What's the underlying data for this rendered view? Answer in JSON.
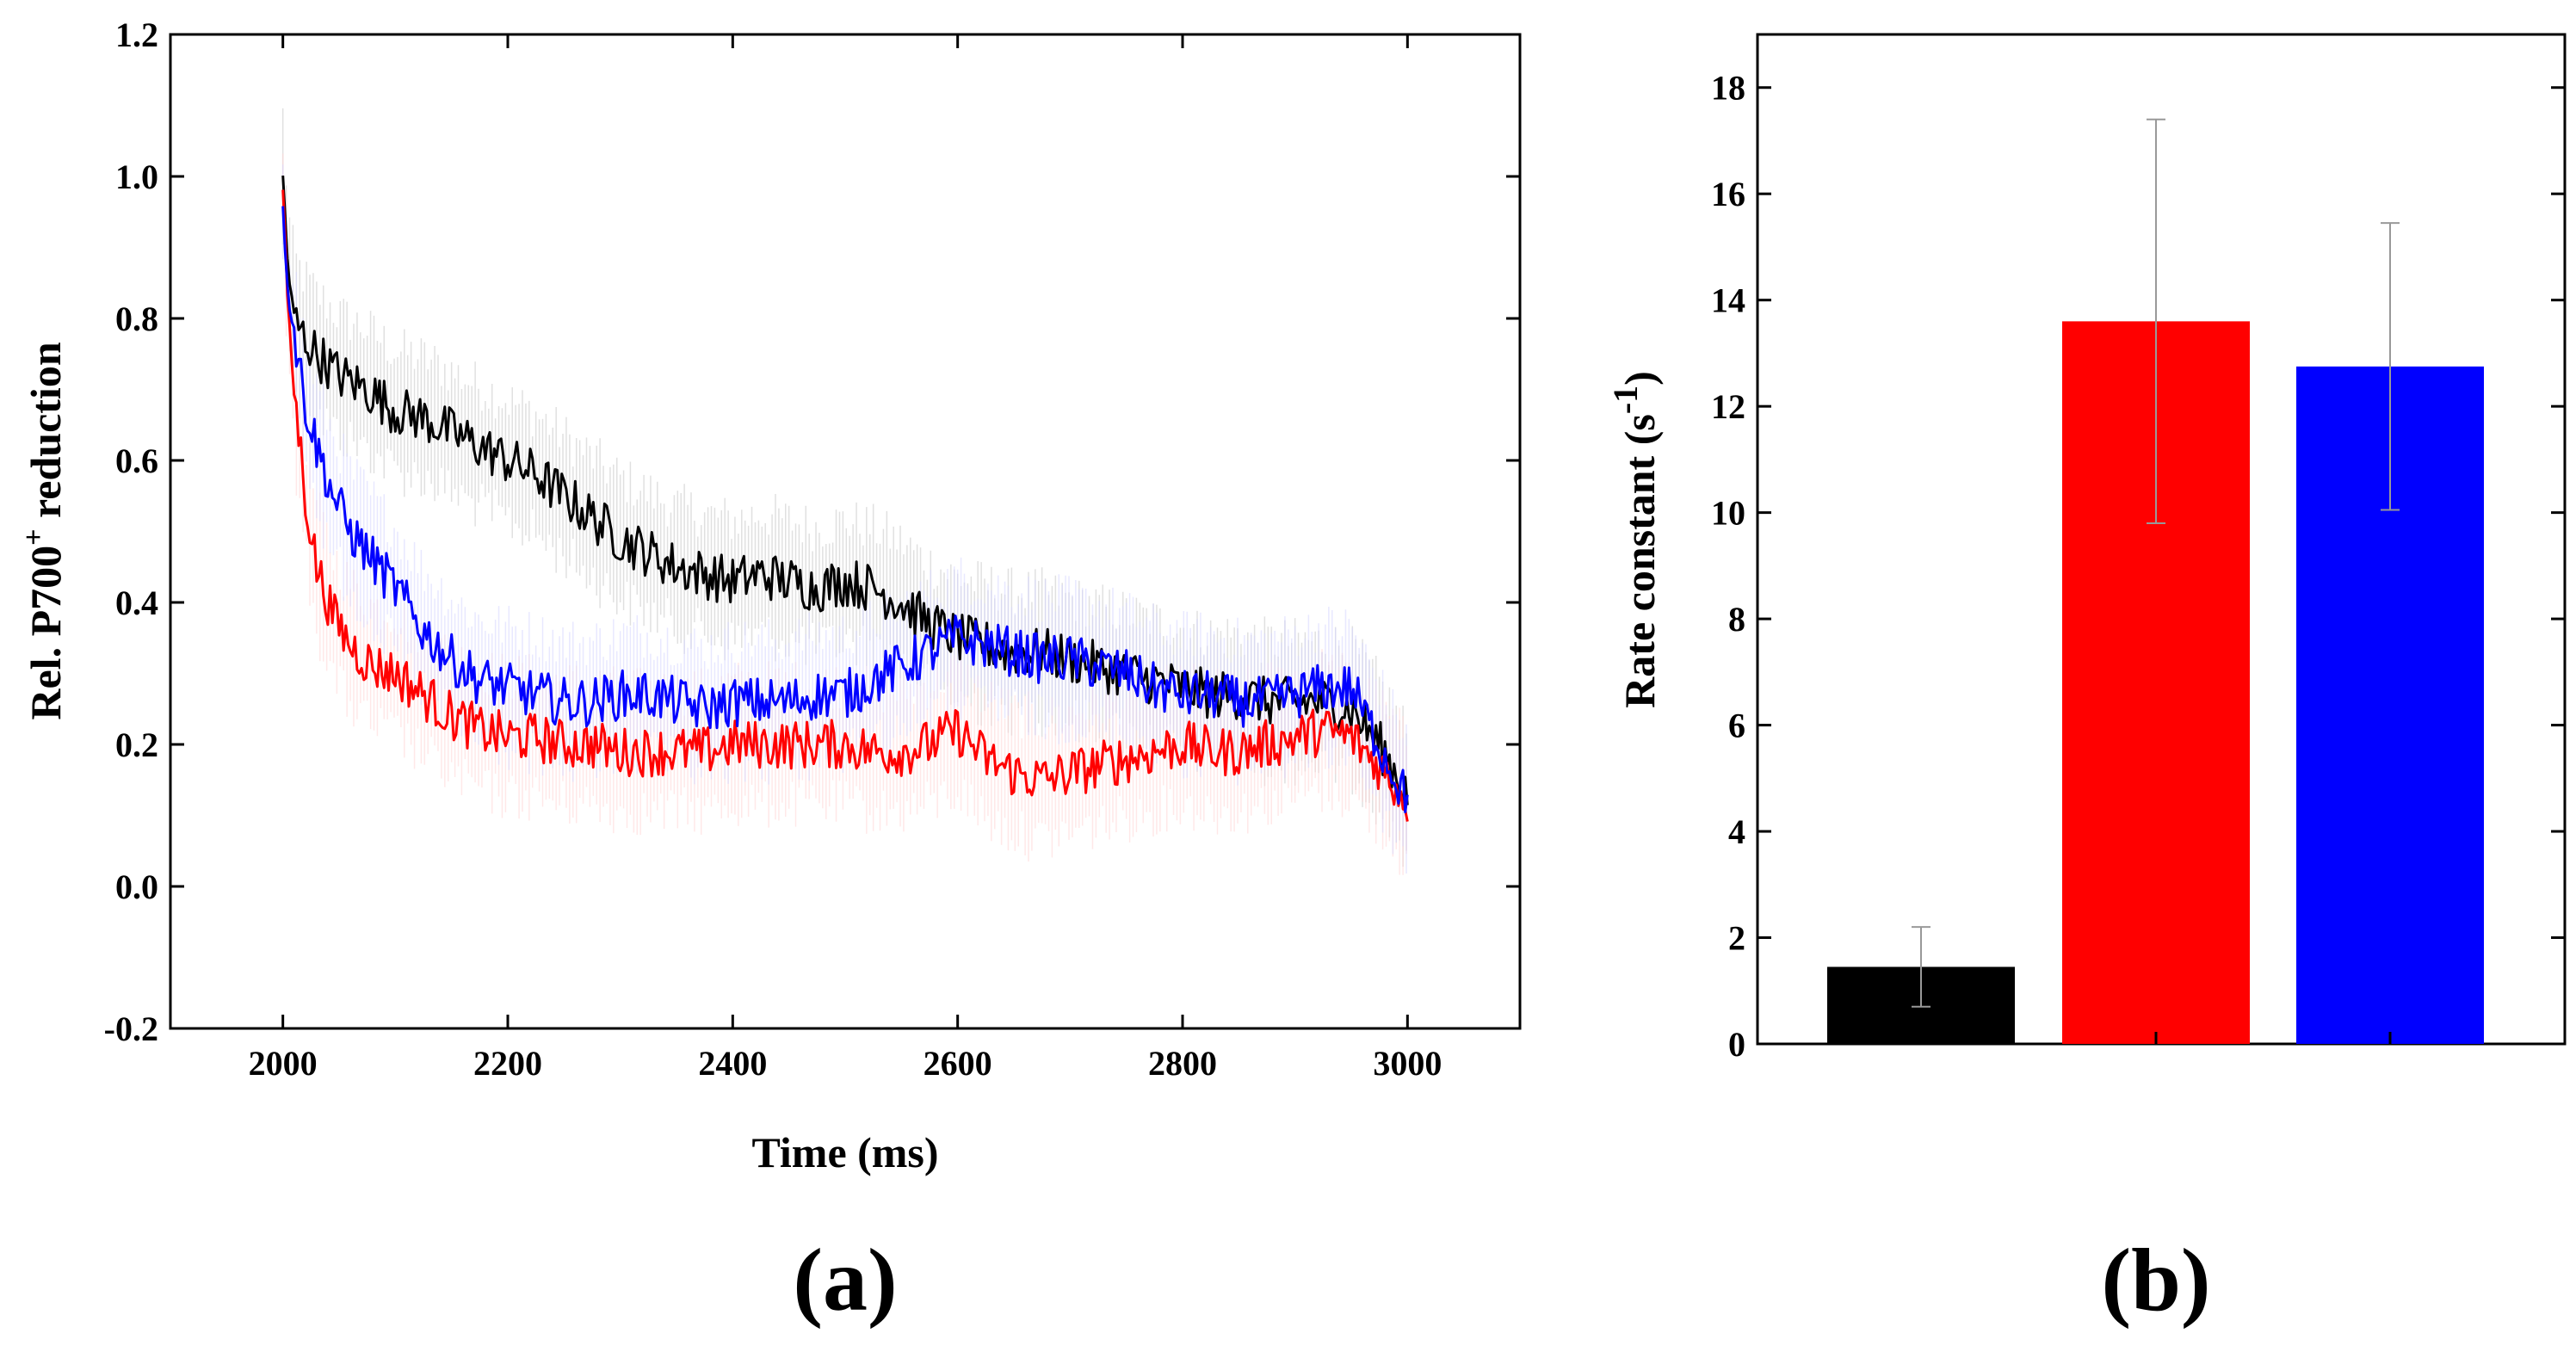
{
  "chart_data": [
    {
      "type": "line",
      "panel_label": "(a)",
      "xlabel": "Time (ms)",
      "ylabel": "Rel. P700",
      "ylabel_superscript": "+",
      "ylabel_suffix": " reduction",
      "xlim": [
        1900,
        3100
      ],
      "ylim": [
        -0.2,
        1.2
      ],
      "xticks": [
        2000,
        2200,
        2400,
        2600,
        2800,
        3000
      ],
      "yticks": [
        "-0.2",
        "0.0",
        "0.2",
        "0.4",
        "0.6",
        "0.8",
        "1.0",
        "1.2"
      ],
      "series": [
        {
          "name": "black",
          "color": "#000000",
          "x": [
            2000,
            2005,
            2010,
            2020,
            2030,
            2050,
            2075,
            2100,
            2125,
            2150,
            2175,
            2200,
            2225,
            2250,
            2275,
            2300,
            2325,
            2350,
            2375,
            2400,
            2425,
            2450,
            2475,
            2500,
            2525,
            2550,
            2575,
            2600,
            2625,
            2650,
            2675,
            2700,
            2725,
            2750,
            2775,
            2800,
            2825,
            2850,
            2875,
            2900,
            2925,
            2950,
            2975,
            3000
          ],
          "y": [
            1.0,
            0.86,
            0.8,
            0.77,
            0.75,
            0.72,
            0.7,
            0.67,
            0.66,
            0.64,
            0.62,
            0.6,
            0.58,
            0.55,
            0.52,
            0.49,
            0.47,
            0.45,
            0.44,
            0.43,
            0.44,
            0.43,
            0.42,
            0.43,
            0.42,
            0.4,
            0.37,
            0.35,
            0.34,
            0.33,
            0.33,
            0.32,
            0.31,
            0.3,
            0.29,
            0.28,
            0.27,
            0.27,
            0.26,
            0.26,
            0.26,
            0.25,
            0.2,
            0.13
          ]
        },
        {
          "name": "red",
          "color": "#ff0000",
          "x": [
            2000,
            2005,
            2010,
            2020,
            2030,
            2045,
            2060,
            2080,
            2100,
            2125,
            2150,
            2175,
            2200,
            2225,
            2250,
            2275,
            2300,
            2325,
            2350,
            2375,
            2400,
            2425,
            2450,
            2475,
            2500,
            2525,
            2550,
            2575,
            2600,
            2625,
            2650,
            2675,
            2700,
            2725,
            2750,
            2775,
            2800,
            2825,
            2850,
            2875,
            2900,
            2925,
            2950,
            2975,
            3000
          ],
          "y": [
            0.98,
            0.8,
            0.7,
            0.55,
            0.45,
            0.38,
            0.34,
            0.31,
            0.3,
            0.27,
            0.24,
            0.22,
            0.21,
            0.21,
            0.2,
            0.2,
            0.19,
            0.19,
            0.19,
            0.19,
            0.2,
            0.2,
            0.2,
            0.2,
            0.2,
            0.19,
            0.19,
            0.2,
            0.22,
            0.18,
            0.16,
            0.15,
            0.16,
            0.17,
            0.18,
            0.19,
            0.2,
            0.19,
            0.19,
            0.2,
            0.21,
            0.22,
            0.21,
            0.17,
            0.12
          ]
        },
        {
          "name": "blue",
          "color": "#0000ff",
          "x": [
            2000,
            2005,
            2010,
            2020,
            2030,
            2045,
            2060,
            2080,
            2100,
            2125,
            2150,
            2175,
            2200,
            2225,
            2250,
            2275,
            2300,
            2325,
            2350,
            2375,
            2400,
            2425,
            2450,
            2475,
            2500,
            2525,
            2550,
            2575,
            2600,
            2625,
            2650,
            2675,
            2700,
            2725,
            2750,
            2775,
            2800,
            2825,
            2850,
            2875,
            2900,
            2925,
            2950,
            2975,
            3000
          ],
          "y": [
            0.95,
            0.83,
            0.78,
            0.68,
            0.62,
            0.55,
            0.5,
            0.46,
            0.42,
            0.36,
            0.32,
            0.29,
            0.28,
            0.27,
            0.26,
            0.26,
            0.27,
            0.27,
            0.26,
            0.25,
            0.26,
            0.26,
            0.26,
            0.27,
            0.27,
            0.29,
            0.31,
            0.33,
            0.35,
            0.34,
            0.33,
            0.32,
            0.32,
            0.31,
            0.3,
            0.28,
            0.27,
            0.27,
            0.26,
            0.26,
            0.27,
            0.28,
            0.28,
            0.2,
            0.12
          ]
        }
      ]
    },
    {
      "type": "bar",
      "panel_label": "(b)",
      "xlabel": "",
      "ylabel": "Rate constant (s",
      "ylabel_superscript": "-1",
      "ylabel_suffix": ")",
      "ylim": [
        0,
        19
      ],
      "yticks": [
        "0",
        "2",
        "4",
        "6",
        "8",
        "10",
        "12",
        "14",
        "16",
        "18"
      ],
      "categories": [
        "black",
        "red",
        "blue"
      ],
      "values": [
        1.45,
        13.6,
        12.75
      ],
      "errors": [
        0.75,
        3.8,
        2.7
      ],
      "colors": [
        "#000000",
        "#ff0000",
        "#0000ff"
      ]
    }
  ]
}
